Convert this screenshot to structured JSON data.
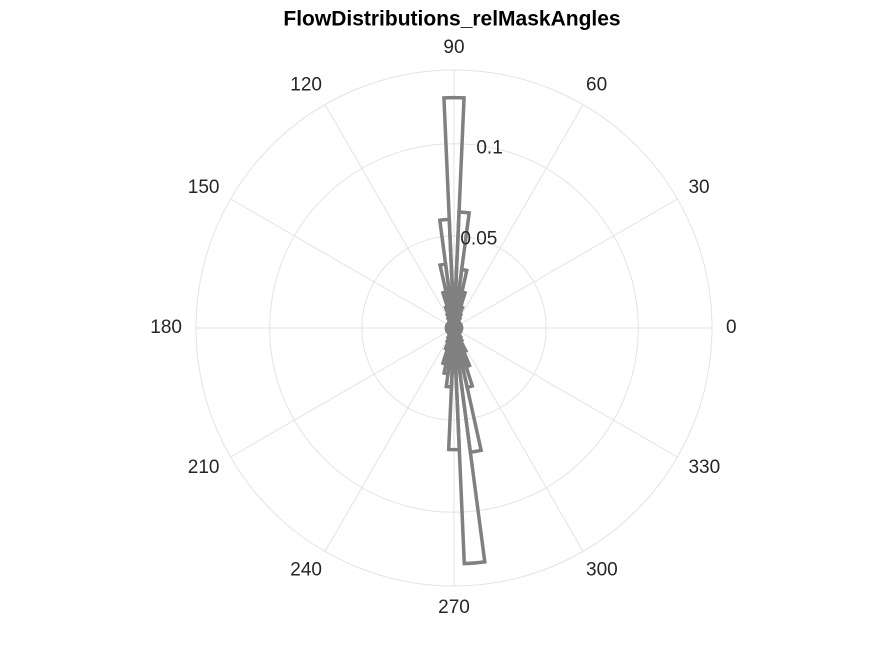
{
  "chart_data": {
    "type": "polar-histogram",
    "title": "FlowDistributions_relMaskAngles",
    "bins": [
      -2.5,
      2.5,
      7.5,
      12.5,
      17.5,
      22.5,
      27.5,
      32.5,
      37.5,
      42.5,
      47.5,
      52.5,
      57.5,
      62.5,
      67.5,
      72.5,
      77.5,
      82.5,
      87.5,
      92.5,
      97.5,
      102.5,
      107.5,
      112.5,
      117.5,
      122.5,
      127.5,
      132.5,
      137.5,
      142.5,
      147.5,
      152.5,
      157.5,
      162.5,
      167.5,
      172.5,
      177.5,
      182.5,
      187.5,
      192.5,
      197.5,
      202.5,
      207.5,
      212.5,
      217.5,
      222.5,
      227.5,
      232.5,
      237.5,
      242.5,
      247.5,
      252.5,
      257.5,
      262.5,
      267.5,
      272.5,
      277.5,
      282.5,
      287.5,
      292.5,
      297.5,
      302.5,
      307.5,
      312.5,
      317.5,
      322.5,
      327.5,
      332.5,
      337.5,
      342.5,
      347.5,
      352.5,
      357.5
    ],
    "values": [
      0.004,
      0.004,
      0.004,
      0.004,
      0.004,
      0.004,
      0.004,
      0.004,
      0.004,
      0.004,
      0.004,
      0.004,
      0.006,
      0.008,
      0.012,
      0.02,
      0.032,
      0.063,
      0.125,
      0.059,
      0.035,
      0.02,
      0.012,
      0.008,
      0.006,
      0.004,
      0.004,
      0.004,
      0.004,
      0.004,
      0.004,
      0.004,
      0.004,
      0.004,
      0.004,
      0.004,
      0.004,
      0.004,
      0.004,
      0.004,
      0.004,
      0.004,
      0.004,
      0.004,
      0.004,
      0.004,
      0.004,
      0.004,
      0.006,
      0.008,
      0.012,
      0.02,
      0.025,
      0.032,
      0.066,
      0.128,
      0.068,
      0.033,
      0.022,
      0.014,
      0.008,
      0.006,
      0.004,
      0.004,
      0.004,
      0.004,
      0.004,
      0.004,
      0.004,
      0.004,
      0.004,
      0.004
    ],
    "color": "#808080",
    "rlim": [
      0,
      0.14
    ],
    "rticks": [
      0.05,
      0.1
    ],
    "thetaticks": [
      0,
      30,
      60,
      90,
      120,
      150,
      180,
      210,
      240,
      270,
      300,
      330
    ],
    "grid": true
  }
}
